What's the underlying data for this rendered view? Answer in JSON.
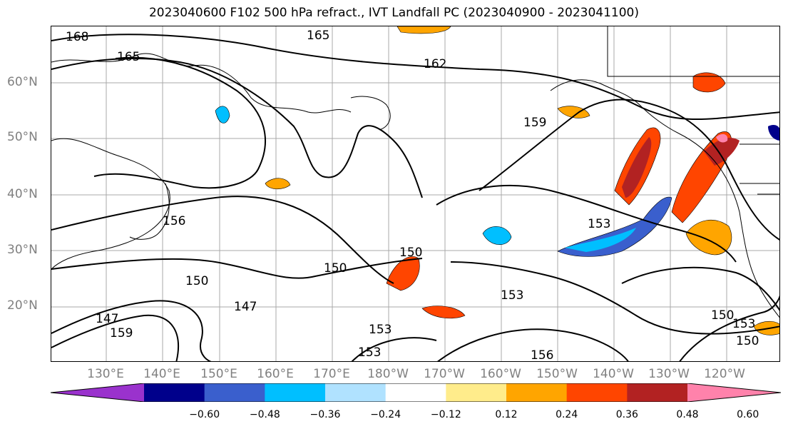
{
  "title": "2023040600 F102 500 hPa refract., IVT Landfall PC (2023040900 - 2023041100)",
  "latitude_labels": [
    "60°N",
    "50°N",
    "40°N",
    "30°N",
    "20°N"
  ],
  "longitude_labels": [
    "130°E",
    "140°E",
    "150°E",
    "160°E",
    "170°E",
    "180°W",
    "170°W",
    "160°W",
    "150°W",
    "140°W",
    "130°W",
    "120°W"
  ],
  "contour_labels": [
    "168",
    "165",
    "165",
    "162",
    "159",
    "156",
    "153",
    "150",
    "150",
    "150",
    "147",
    "147",
    "159",
    "153",
    "153",
    "153",
    "156",
    "150",
    "153",
    "150"
  ],
  "colorbar": {
    "ticks": [
      "−0.60",
      "−0.48",
      "−0.36",
      "−0.24",
      "−0.12",
      "0.12",
      "0.24",
      "0.36",
      "0.48",
      "0.60"
    ],
    "colors": [
      "#9a32cd",
      "#00008b",
      "#3a5fcd",
      "#00bfff",
      "#b0e2ff",
      "#ffffff",
      "#ffec8b",
      "#ffa500",
      "#ff4500",
      "#b22222",
      "#ff82ab"
    ]
  }
}
